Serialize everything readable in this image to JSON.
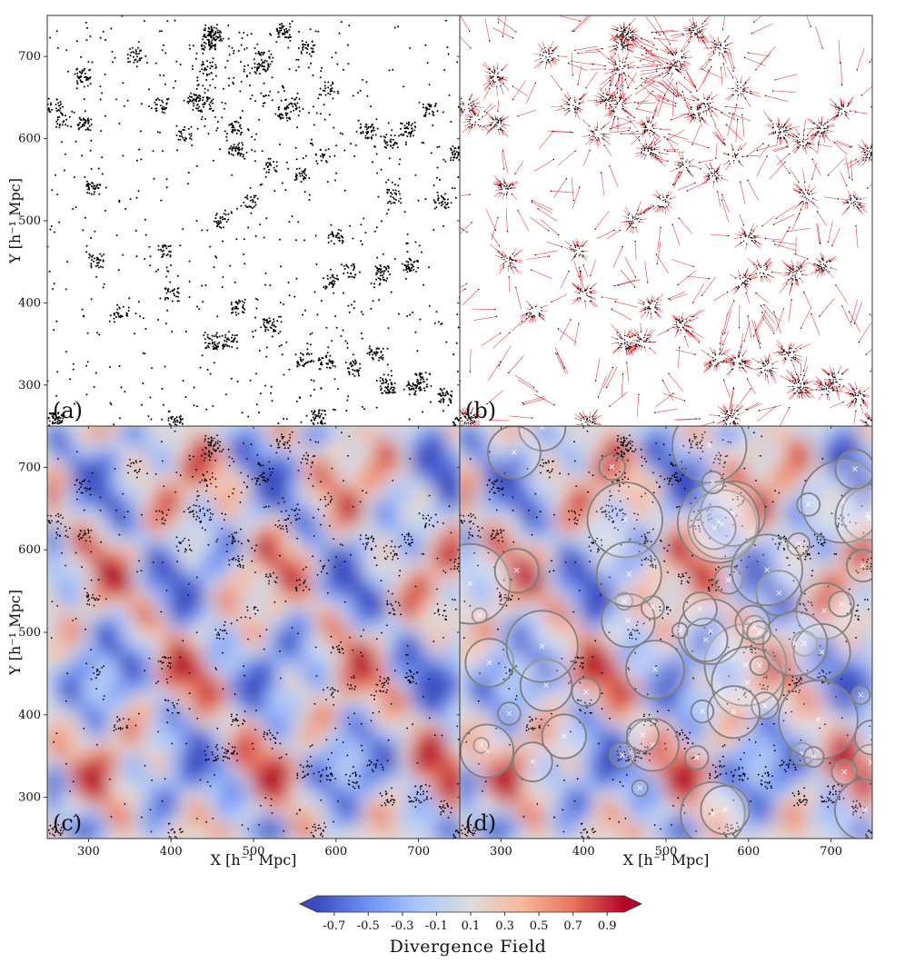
{
  "chart_data": {
    "type": "heatmap",
    "layout": "2x2 panels",
    "x_range": [
      250,
      750
    ],
    "y_range": [
      250,
      750
    ],
    "x_ticks": [
      300,
      400,
      500,
      600,
      700
    ],
    "y_ticks": [
      300,
      400,
      500,
      600,
      700
    ],
    "xlabel": "X  [h⁻¹ Mpc]",
    "ylabel": "Y  [h⁻¹ Mpc]",
    "panels": [
      {
        "label": "(a)",
        "type": "scatter",
        "content": "galaxy positions",
        "point_color": "#000000"
      },
      {
        "label": "(b)",
        "type": "vector",
        "content": "velocity field lines",
        "colors": [
          "#e8000b",
          "#000000"
        ]
      },
      {
        "label": "(c)",
        "type": "heatmap",
        "content": "divergence field with galaxies"
      },
      {
        "label": "(d)",
        "type": "heatmap",
        "content": "divergence field with void circles",
        "circle_color": "#808080",
        "center_marker_color": "#ffffff"
      }
    ],
    "colorbar": {
      "title": "Divergence Field",
      "ticks": [
        -0.7,
        -0.5,
        -0.3,
        -0.1,
        0.1,
        0.3,
        0.5,
        0.7,
        0.9
      ],
      "tick_labels": [
        "-0.7",
        "-0.5",
        "-0.3",
        "-0.1",
        "0.1",
        "0.3",
        "0.5",
        "0.7",
        "0.9"
      ],
      "range": [
        -0.8,
        1.0
      ],
      "colormap": "coolwarm",
      "colors": [
        "#3b4cc0",
        "#6f92f3",
        "#aac7fd",
        "#dddcdc",
        "#f7b89c",
        "#e7745b",
        "#b40426"
      ],
      "extend": "both"
    }
  }
}
